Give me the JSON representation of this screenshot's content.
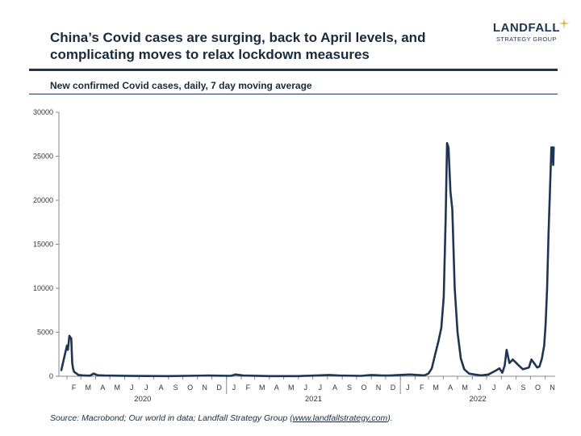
{
  "header": {
    "title": "China’s Covid cases are surging, back to April levels, and complicating moves to relax lockdown measures",
    "subtitle": "New confirmed Covid cases, daily, 7 day moving average"
  },
  "logo": {
    "name": "LANDFALL",
    "sub": "STRATEGY GROUP",
    "accent_color": "#d9b84a",
    "icon": "star-icon"
  },
  "footer": {
    "source_prefix": "Source: Macrobond; Our world in data; Landfall Strategy Group (",
    "source_link": "www.landfallstrategy.com",
    "source_suffix": ")."
  },
  "chart_data": {
    "type": "line",
    "ylim": [
      0,
      30000
    ],
    "yticks": [
      0,
      5000,
      10000,
      15000,
      20000,
      25000,
      30000
    ],
    "line_color": "#1f3552",
    "grid": false,
    "month_labels": [
      "F",
      "M",
      "A",
      "M",
      "J",
      "J",
      "A",
      "S",
      "O",
      "N",
      "D",
      "J",
      "F",
      "M",
      "A",
      "M",
      "J",
      "J",
      "A",
      "S",
      "O",
      "N",
      "D",
      "J",
      "F",
      "M",
      "A",
      "M",
      "J",
      "J",
      "A",
      "S",
      "O",
      "N"
    ],
    "year_labels": [
      "2020",
      "2021",
      "2022"
    ],
    "series": [
      {
        "x": [
          "2020-01-20",
          "2020-01-26",
          "2020-02-01",
          "2020-02-03",
          "2020-02-06",
          "2020-02-08",
          "2020-02-10",
          "2020-02-12",
          "2020-02-14",
          "2020-02-16",
          "2020-02-20",
          "2020-02-25",
          "2020-03-05",
          "2020-03-20",
          "2020-03-28",
          "2020-04-05",
          "2020-04-20",
          "2020-06-15",
          "2020-09-01",
          "2020-11-20",
          "2020-12-20",
          "2021-01-10",
          "2021-01-20",
          "2021-02-05",
          "2021-04-01",
          "2021-06-01",
          "2021-08-05",
          "2021-08-25",
          "2021-10-10",
          "2021-11-01",
          "2021-11-20",
          "2021-12-10",
          "2021-12-30",
          "2022-01-20",
          "2022-02-20",
          "2022-03-01",
          "2022-03-08",
          "2022-03-15",
          "2022-03-22",
          "2022-03-28",
          "2022-04-02",
          "2022-04-06",
          "2022-04-09",
          "2022-04-12",
          "2022-04-16",
          "2022-04-20",
          "2022-04-25",
          "2022-05-01",
          "2022-05-08",
          "2022-05-15",
          "2022-05-25",
          "2022-06-05",
          "2022-06-20",
          "2022-07-05",
          "2022-07-15",
          "2022-07-22",
          "2022-07-28",
          "2022-08-03",
          "2022-08-08",
          "2022-08-12",
          "2022-08-18",
          "2022-08-25",
          "2022-09-05",
          "2022-09-15",
          "2022-09-22",
          "2022-09-28",
          "2022-10-03",
          "2022-10-10",
          "2022-10-15",
          "2022-10-20",
          "2022-10-25",
          "2022-10-30",
          "2022-11-02",
          "2022-11-05",
          "2022-11-08",
          "2022-11-11",
          "2022-11-14",
          "2022-11-16",
          "2022-11-18",
          "2022-11-19"
        ],
        "y": [
          700,
          2100,
          3500,
          3000,
          4600,
          4400,
          4300,
          1500,
          800,
          500,
          350,
          150,
          100,
          60,
          300,
          120,
          80,
          40,
          20,
          80,
          60,
          50,
          200,
          80,
          20,
          20,
          150,
          80,
          50,
          150,
          100,
          80,
          150,
          200,
          100,
          300,
          900,
          2500,
          4000,
          5500,
          9000,
          18000,
          26500,
          26000,
          21000,
          19000,
          10000,
          5000,
          2000,
          800,
          300,
          200,
          100,
          200,
          500,
          700,
          900,
          400,
          1200,
          3000,
          1500,
          1900,
          1300,
          800,
          900,
          1000,
          1900,
          1400,
          1000,
          1100,
          2000,
          3500,
          6000,
          10000,
          16000,
          21000,
          26000,
          26000,
          24000,
          26000
        ]
      }
    ]
  }
}
